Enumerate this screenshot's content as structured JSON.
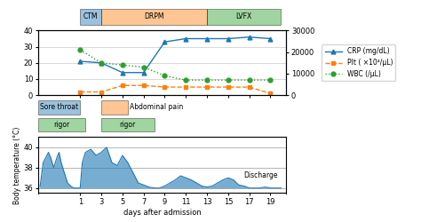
{
  "chart_data": [
    {
      "type": "timeline",
      "xlim": [
        -3,
        20.5
      ],
      "tick_labels": false,
      "rows": [
        [
          {
            "label": "CTM",
            "start": 1,
            "end": 3
          },
          {
            "label": "DRPM",
            "start": 3,
            "end": 13
          },
          {
            "label": "LVFX",
            "start": 13,
            "end": 20
          }
        ]
      ]
    },
    {
      "type": "line",
      "x": [
        1,
        3,
        5,
        7,
        9,
        11,
        13,
        15,
        17,
        19
      ],
      "xlim": [
        -3,
        20.5
      ],
      "xticks": [
        1,
        3,
        5,
        7,
        9,
        11,
        13,
        15,
        17,
        19
      ],
      "ylim": [
        0,
        40
      ],
      "yticks": [
        0,
        10,
        20,
        30,
        40
      ],
      "y2lim": [
        0,
        30000
      ],
      "y2ticks": [
        0,
        10000,
        20000,
        30000
      ],
      "grid": true,
      "legend": "center left",
      "tick_labels": "y",
      "series": [
        {
          "name": "CRP (mg/dL)",
          "values": [
            21,
            20,
            14,
            14,
            33,
            35,
            35,
            35,
            36,
            35
          ],
          "marker": "triangle",
          "line_style": "solid"
        },
        {
          "name": "Plt ( ×10⁴/μL)",
          "values": [
            2,
            2,
            6,
            6,
            5,
            5,
            5,
            5,
            5,
            1
          ],
          "marker": "square",
          "line_style": "dashed"
        },
        {
          "name": "WBC (/μL)",
          "axis": "y2",
          "values": [
            21000,
            15000,
            14000,
            13000,
            9000,
            7000,
            7000,
            7000,
            7000,
            7000
          ],
          "marker": "circle",
          "line_style": "dotted"
        }
      ]
    },
    {
      "type": "timeline",
      "xlim": [
        -3,
        20.5
      ],
      "tick_labels": false,
      "rows": [
        [
          {
            "label": "Sore throat",
            "start": -3,
            "end": 1
          },
          {
            "label": "Abdominal pain",
            "start": 3,
            "end": 5.5
          }
        ],
        [
          {
            "label": "rigor",
            "start": -3,
            "end": 1.5
          },
          {
            "label": "rigor",
            "start": 3,
            "end": 8
          }
        ]
      ]
    },
    {
      "type": "area",
      "x": [
        -2.8,
        -2.5,
        -2,
        -1.8,
        -1.5,
        -1.2,
        -1,
        -0.8,
        -0.5,
        -0.2,
        0,
        0.2,
        0.5,
        0.8,
        1,
        1.2,
        1.5,
        2,
        2.5,
        3,
        3.5,
        4,
        4.5,
        5,
        5.5,
        6,
        6.5,
        7,
        7.5,
        8,
        8.5,
        9,
        9.5,
        10,
        10.5,
        11,
        11.5,
        12,
        12.5,
        13,
        13.5,
        14,
        14.5,
        15,
        15.5,
        16,
        16.5,
        17,
        17.5,
        18,
        18.5,
        19,
        19.5,
        20
      ],
      "values": [
        36.1,
        38.5,
        39.5,
        39,
        38,
        39,
        39.5,
        38.5,
        37.5,
        36.5,
        36.3,
        36.1,
        36.0,
        36.0,
        36.0,
        38.5,
        39.5,
        39.8,
        39.2,
        39.5,
        40.0,
        38.5,
        38.2,
        39.2,
        38.5,
        37.5,
        36.5,
        36.3,
        36.1,
        36.0,
        36.0,
        36.2,
        36.5,
        36.8,
        37.2,
        37.0,
        36.8,
        36.5,
        36.2,
        36.1,
        36.2,
        36.5,
        36.8,
        37.0,
        36.8,
        36.3,
        36.2,
        36.0,
        36.0,
        36.0,
        36.1,
        36.0,
        36.0,
        36.0
      ],
      "baseline": 36,
      "xlim": [
        -3,
        20.5
      ],
      "xticks": [
        1,
        3,
        5,
        7,
        9,
        11,
        13,
        15,
        17,
        19
      ],
      "ylim": [
        35.5,
        41.0
      ],
      "yticks": [
        36,
        38,
        40
      ],
      "grid": true,
      "x_label": "days after admission",
      "y_label": "Body temperature (°C)",
      "annotations": [
        {
          "text": "Discharge",
          "x": 16.5,
          "y": 37.2
        }
      ]
    }
  ]
}
